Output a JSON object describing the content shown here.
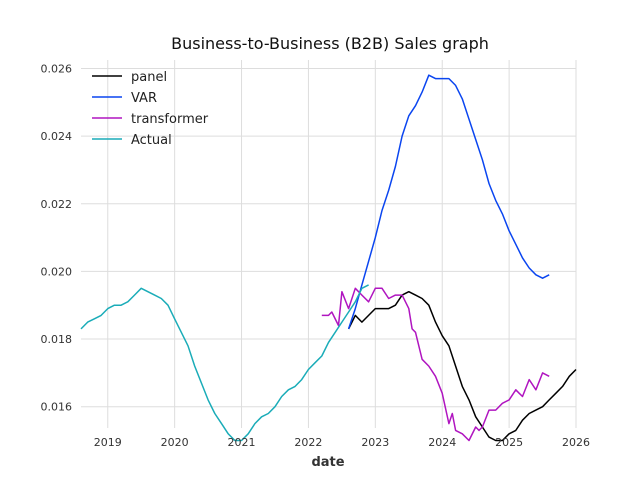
{
  "chart_data": {
    "type": "line",
    "title": "Business-to-Business (B2B) Sales graph",
    "xlabel": "date",
    "ylabel": "",
    "xlim": [
      2018.6,
      2026.0
    ],
    "ylim": [
      0.01537,
      0.02625
    ],
    "x_ticks": [
      "2019",
      "2020",
      "2021",
      "2022",
      "2023",
      "2024",
      "2025",
      "2026"
    ],
    "y_ticks": [
      "0.016",
      "0.018",
      "0.020",
      "0.022",
      "0.024",
      "0.026"
    ],
    "grid": true,
    "legend_position": "top-left",
    "series": [
      {
        "name": "panel",
        "color": "#000000",
        "x": [
          2022.6,
          2022.7,
          2022.8,
          2022.9,
          2023.0,
          2023.1,
          2023.2,
          2023.3,
          2023.4,
          2023.5,
          2023.6,
          2023.7,
          2023.8,
          2023.9,
          2024.0,
          2024.1,
          2024.2,
          2024.3,
          2024.4,
          2024.5,
          2024.6,
          2024.7,
          2024.8,
          2024.9,
          2025.0,
          2025.1,
          2025.2,
          2025.3,
          2025.4,
          2025.5,
          2025.6,
          2025.7,
          2025.8,
          2025.9,
          2026.0
        ],
        "values": [
          0.0183,
          0.0187,
          0.0185,
          0.0187,
          0.0189,
          0.0189,
          0.0189,
          0.019,
          0.0193,
          0.0194,
          0.0193,
          0.0192,
          0.019,
          0.0185,
          0.0181,
          0.0178,
          0.0172,
          0.0166,
          0.0162,
          0.0157,
          0.0154,
          0.0151,
          0.015,
          0.015,
          0.0152,
          0.0153,
          0.0156,
          0.0158,
          0.0159,
          0.016,
          0.0162,
          0.0164,
          0.0166,
          0.0169,
          0.0171
        ]
      },
      {
        "name": "VAR",
        "color": "#0a45f0",
        "x": [
          2022.6,
          2022.7,
          2022.8,
          2022.9,
          2023.0,
          2023.1,
          2023.2,
          2023.3,
          2023.4,
          2023.5,
          2023.6,
          2023.7,
          2023.8,
          2023.9,
          2024.0,
          2024.1,
          2024.2,
          2024.3,
          2024.4,
          2024.5,
          2024.6,
          2024.7,
          2024.8,
          2024.9,
          2025.0,
          2025.1,
          2025.2,
          2025.3,
          2025.4,
          2025.5,
          2025.6
        ],
        "values": [
          0.0183,
          0.0189,
          0.0196,
          0.0203,
          0.021,
          0.0218,
          0.0224,
          0.0231,
          0.024,
          0.0246,
          0.0249,
          0.0253,
          0.0258,
          0.0257,
          0.0257,
          0.0257,
          0.0255,
          0.0251,
          0.0245,
          0.0239,
          0.0233,
          0.0226,
          0.0221,
          0.0217,
          0.0212,
          0.0208,
          0.0204,
          0.0201,
          0.0199,
          0.0198,
          0.0199
        ]
      },
      {
        "name": "transformer",
        "color": "#b015c0",
        "x": [
          2022.2,
          2022.3,
          2022.35,
          2022.45,
          2022.5,
          2022.6,
          2022.7,
          2022.8,
          2022.9,
          2023.0,
          2023.1,
          2023.2,
          2023.3,
          2023.4,
          2023.5,
          2023.55,
          2023.6,
          2023.7,
          2023.8,
          2023.9,
          2024.0,
          2024.1,
          2024.15,
          2024.2,
          2024.3,
          2024.4,
          2024.5,
          2024.55,
          2024.6,
          2024.7,
          2024.8,
          2024.9,
          2025.0,
          2025.1,
          2025.15,
          2025.2,
          2025.3,
          2025.4,
          2025.5,
          2025.6
        ],
        "values": [
          0.0187,
          0.0187,
          0.0188,
          0.0184,
          0.0194,
          0.0189,
          0.0195,
          0.0193,
          0.0191,
          0.0195,
          0.0195,
          0.0192,
          0.0193,
          0.0193,
          0.0189,
          0.0183,
          0.0182,
          0.0174,
          0.0172,
          0.0169,
          0.0164,
          0.0155,
          0.0158,
          0.0153,
          0.0152,
          0.015,
          0.0154,
          0.0153,
          0.0154,
          0.0159,
          0.0159,
          0.0161,
          0.0162,
          0.0165,
          0.0164,
          0.0163,
          0.0168,
          0.0165,
          0.017,
          0.0169
        ]
      },
      {
        "name": "Actual",
        "color": "#1aacb8",
        "x": [
          2018.6,
          2018.7,
          2018.8,
          2018.9,
          2019.0,
          2019.1,
          2019.2,
          2019.3,
          2019.4,
          2019.5,
          2019.6,
          2019.7,
          2019.8,
          2019.9,
          2020.0,
          2020.1,
          2020.2,
          2020.3,
          2020.4,
          2020.5,
          2020.6,
          2020.7,
          2020.8,
          2020.9,
          2021.0,
          2021.1,
          2021.2,
          2021.3,
          2021.4,
          2021.5,
          2021.6,
          2021.7,
          2021.8,
          2021.9,
          2022.0,
          2022.1,
          2022.2,
          2022.3,
          2022.4,
          2022.5,
          2022.6,
          2022.7,
          2022.8,
          2022.9
        ],
        "values": [
          0.0183,
          0.0185,
          0.0186,
          0.0187,
          0.0189,
          0.019,
          0.019,
          0.0191,
          0.0193,
          0.0195,
          0.0194,
          0.0193,
          0.0192,
          0.019,
          0.0186,
          0.0182,
          0.0178,
          0.0172,
          0.0167,
          0.0162,
          0.0158,
          0.0155,
          0.0152,
          0.015,
          0.015,
          0.0152,
          0.0155,
          0.0157,
          0.0158,
          0.016,
          0.0163,
          0.0165,
          0.0166,
          0.0168,
          0.0171,
          0.0173,
          0.0175,
          0.0179,
          0.0182,
          0.0185,
          0.0188,
          0.0191,
          0.0195,
          0.0196
        ]
      }
    ]
  }
}
